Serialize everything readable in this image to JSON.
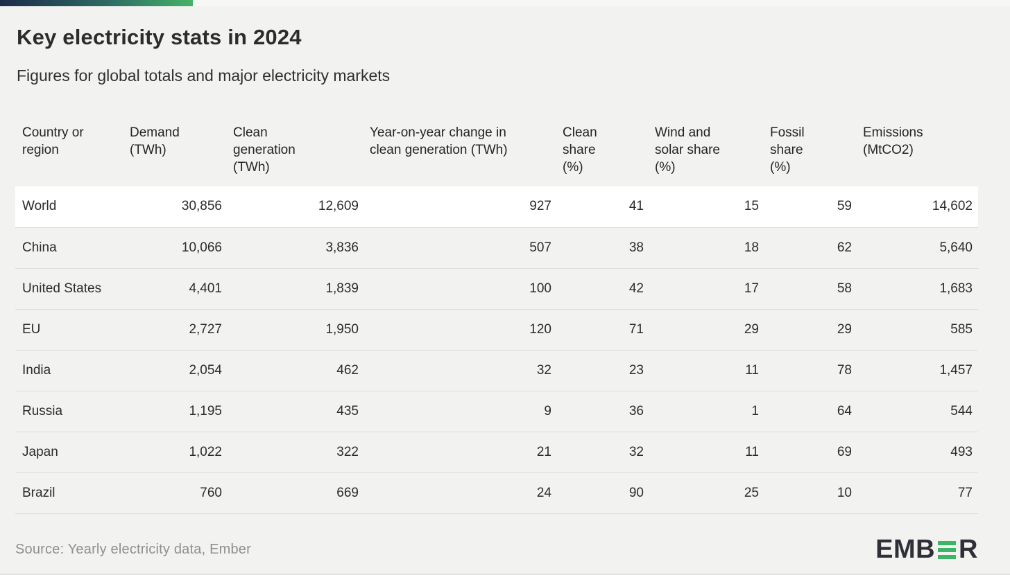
{
  "page": {
    "title": "Key electricity stats in 2024",
    "subtitle": "Figures for global totals and major electricity markets",
    "source": "Source: Yearly electricity data, Ember"
  },
  "brand": {
    "name": "EMBER",
    "left": "EMB",
    "right": "R",
    "green": "#3cb664",
    "dark": "#2f3037"
  },
  "accent_gradient": [
    "#1d2a4a",
    "#2d6a63",
    "#46b269"
  ],
  "table": {
    "headers": [
      "Country or region",
      "Demand (TWh)",
      "Clean generation (TWh)",
      "Year-on-year change in clean generation (TWh)",
      "Clean share (%)",
      "Wind and solar share (%)",
      "Fossil share (%)",
      "Emissions (MtCO2)"
    ],
    "rows": [
      {
        "region": "World",
        "values": [
          "30,856",
          "12,609",
          "927",
          "41",
          "15",
          "59",
          "14,602"
        ],
        "highlighted": true
      },
      {
        "region": "China",
        "values": [
          "10,066",
          "3,836",
          "507",
          "38",
          "18",
          "62",
          "5,640"
        ],
        "highlighted": false
      },
      {
        "region": "United States",
        "values": [
          "4,401",
          "1,839",
          "100",
          "42",
          "17",
          "58",
          "1,683"
        ],
        "highlighted": false
      },
      {
        "region": "EU",
        "values": [
          "2,727",
          "1,950",
          "120",
          "71",
          "29",
          "29",
          "585"
        ],
        "highlighted": false
      },
      {
        "region": "India",
        "values": [
          "2,054",
          "462",
          "32",
          "23",
          "11",
          "78",
          "1,457"
        ],
        "highlighted": false
      },
      {
        "region": "Russia",
        "values": [
          "1,195",
          "435",
          "9",
          "36",
          "1",
          "64",
          "544"
        ],
        "highlighted": false
      },
      {
        "region": "Japan",
        "values": [
          "1,022",
          "322",
          "21",
          "32",
          "11",
          "69",
          "493"
        ],
        "highlighted": false
      },
      {
        "region": "Brazil",
        "values": [
          "760",
          "669",
          "24",
          "90",
          "25",
          "10",
          "77"
        ],
        "highlighted": false
      }
    ]
  },
  "chart_data": {
    "type": "table",
    "title": "Key electricity stats in 2024",
    "subtitle": "Figures for global totals and major electricity markets",
    "columns": [
      "Country or region",
      "Demand (TWh)",
      "Clean generation (TWh)",
      "Year-on-year change in clean generation (TWh)",
      "Clean share (%)",
      "Wind and solar share (%)",
      "Fossil share (%)",
      "Emissions (MtCO2)"
    ],
    "rows": [
      [
        "World",
        30856,
        12609,
        927,
        41,
        15,
        59,
        14602
      ],
      [
        "China",
        10066,
        3836,
        507,
        38,
        18,
        62,
        5640
      ],
      [
        "United States",
        4401,
        1839,
        100,
        42,
        17,
        58,
        1683
      ],
      [
        "EU",
        2727,
        1950,
        120,
        71,
        29,
        29,
        585
      ],
      [
        "India",
        2054,
        462,
        32,
        23,
        11,
        78,
        1457
      ],
      [
        "Russia",
        1195,
        435,
        9,
        36,
        1,
        64,
        544
      ],
      [
        "Japan",
        1022,
        322,
        21,
        32,
        11,
        69,
        493
      ],
      [
        "Brazil",
        760,
        669,
        24,
        90,
        25,
        10,
        77
      ]
    ],
    "highlighted_row": "World",
    "source": "Source: Yearly electricity data, Ember"
  }
}
